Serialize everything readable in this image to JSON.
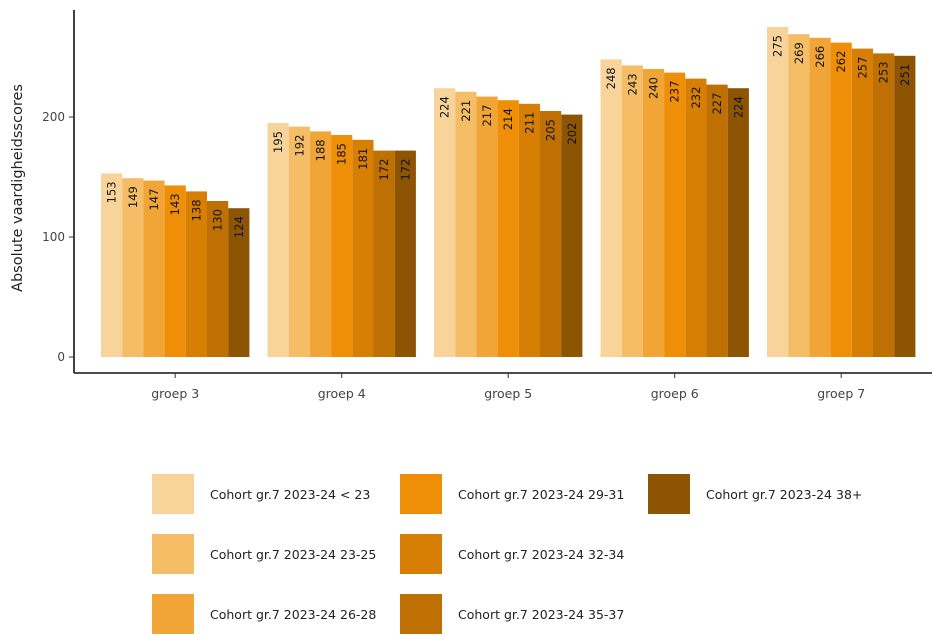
{
  "chart_data": {
    "type": "bar",
    "title": "",
    "xlabel": "",
    "ylabel": "Absolute vaardigheidsscores",
    "ylim": [
      0,
      285
    ],
    "yticks": [
      0,
      100,
      200
    ],
    "grid": false,
    "legend_position": "bottom",
    "categories": [
      "groep 3",
      "groep 4",
      "groep 5",
      "groep 6",
      "groep 7"
    ],
    "series": [
      {
        "name": "Cohort gr.7 2023-24 < 23",
        "color": "#f9d49a",
        "values": [
          153,
          195,
          224,
          248,
          275
        ]
      },
      {
        "name": "Cohort gr.7 2023-24 23-25",
        "color": "#f4bd66",
        "values": [
          149,
          192,
          221,
          243,
          269
        ]
      },
      {
        "name": "Cohort gr.7 2023-24 26-28",
        "color": "#f1a537",
        "values": [
          147,
          188,
          217,
          240,
          266
        ]
      },
      {
        "name": "Cohort gr.7 2023-24 29-31",
        "color": "#ee8f07",
        "values": [
          143,
          185,
          214,
          237,
          262
        ]
      },
      {
        "name": "Cohort gr.7 2023-24 32-34",
        "color": "#d77f04",
        "values": [
          138,
          181,
          211,
          232,
          257
        ]
      },
      {
        "name": "Cohort gr.7 2023-24 35-37",
        "color": "#bf7003",
        "values": [
          130,
          172,
          205,
          227,
          253
        ]
      },
      {
        "name": "Cohort gr.7 2023-24 38+",
        "color": "#8d5403",
        "values": [
          124,
          172,
          202,
          224,
          251
        ]
      }
    ]
  }
}
